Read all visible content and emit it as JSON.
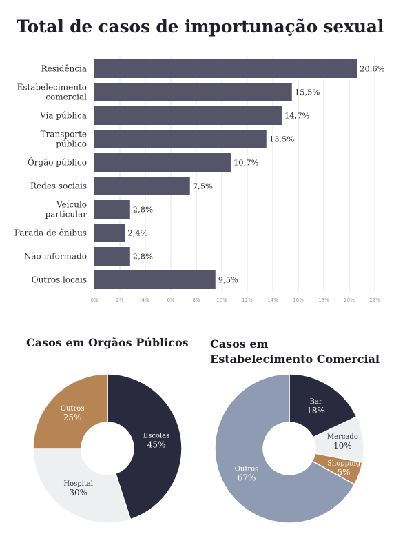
{
  "colors": {
    "bar": "#565469",
    "grid": "#e3e3e8",
    "dark_navy": "#2a2a3f",
    "brown": "#b78553",
    "light_gray": "#eeeff1",
    "blue_gray": "#8e9bb2"
  },
  "chart_data": [
    {
      "type": "bar",
      "orientation": "horizontal",
      "title": "Total de casos de importunação sexual",
      "categories": [
        "Residência",
        "Estabelecimento comercial",
        "Via pública",
        "Transporte público",
        "Órgão público",
        "Redes sociais",
        "Veículo particular",
        "Parada de ônibus",
        "Não informado",
        "Outros locais"
      ],
      "values": [
        20.6,
        15.5,
        14.7,
        13.5,
        10.7,
        7.5,
        2.8,
        2.4,
        2.8,
        9.5
      ],
      "value_labels": [
        "20,6%",
        "15,5%",
        "14,7%",
        "13,5%",
        "10,7%",
        "7,5%",
        "2,8%",
        "2,4%",
        "2,8%",
        "9,5%"
      ],
      "xlim": [
        0,
        22
      ],
      "x_ticks": [
        0,
        2,
        4,
        6,
        8,
        10,
        12,
        14,
        16,
        18,
        20,
        22
      ],
      "x_tick_labels": [
        "0%",
        "2%",
        "4%",
        "6%",
        "8%",
        "10%",
        "12%",
        "14%",
        "16%",
        "18%",
        "20%",
        "22%"
      ],
      "grid": true
    },
    {
      "type": "pie",
      "donut": true,
      "title": "Casos em Orgãos Públicos",
      "slices": [
        {
          "label": "Escolas",
          "value": 45,
          "value_label": "45%",
          "color": "#2a2a3f",
          "text_color": "#ffffff"
        },
        {
          "label": "Hospital",
          "value": 30,
          "value_label": "30%",
          "color": "#eeeff1",
          "text_color": "#2a2a3f"
        },
        {
          "label": "Outros",
          "value": 25,
          "value_label": "25%",
          "color": "#b78553",
          "text_color": "#ffffff"
        }
      ]
    },
    {
      "type": "pie",
      "donut": true,
      "title_lines": [
        "Casos em",
        "Estabelecimento Comercial"
      ],
      "slices": [
        {
          "label": "Bar",
          "value": 18,
          "value_label": "18%",
          "color": "#2a2a3f",
          "text_color": "#ffffff"
        },
        {
          "label": "Mercado",
          "value": 10,
          "value_label": "10%",
          "color": "#eeeff1",
          "text_color": "#2a2a3f"
        },
        {
          "label": "Shopping",
          "value": 5,
          "value_label": "5%",
          "color": "#b78553",
          "text_color": "#ffffff"
        },
        {
          "label": "Outros",
          "value": 67,
          "value_label": "67%",
          "color": "#8e9bb2",
          "text_color": "#ffffff"
        }
      ]
    }
  ]
}
